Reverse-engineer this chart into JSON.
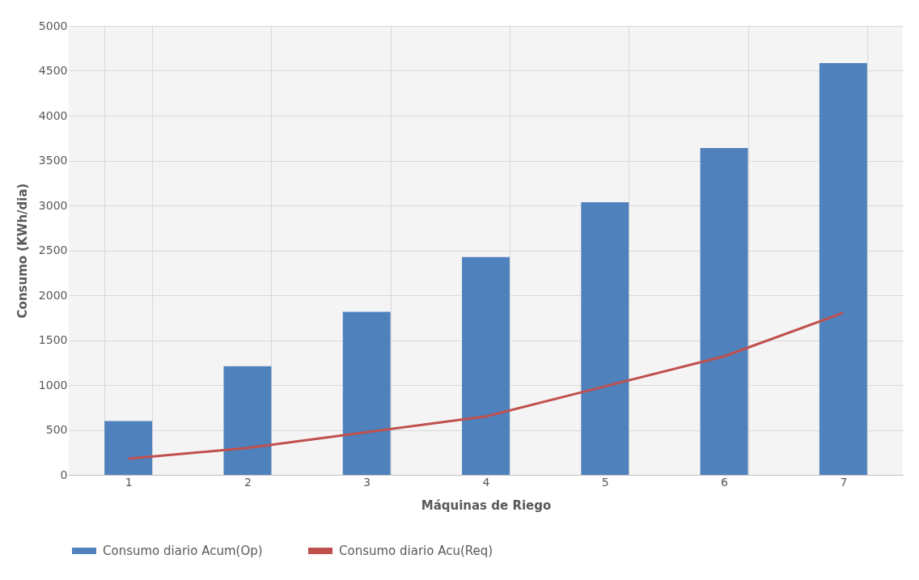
{
  "chart_data": {
    "type": "bar",
    "xlabel": "Máquinas de Riego",
    "ylabel": "Consumo (KWh/dia)",
    "categories": [
      "1",
      "2",
      "3",
      "4",
      "5",
      "6",
      "7"
    ],
    "series": [
      {
        "name": "Consumo diario Acum(Op)",
        "color": "#4f81bd",
        "values": [
          600,
          1210,
          1815,
          2425,
          3035,
          3640,
          4585
        ]
      },
      {
        "name": "Consumo diario Acu(Req)",
        "type": "line",
        "color": "#c0504d",
        "values": [
          180,
          300,
          475,
          650,
          985,
          1320,
          1805
        ]
      }
    ],
    "ylim": [
      0,
      5000
    ],
    "yticks": [
      0,
      500,
      1000,
      1500,
      2000,
      2500,
      3000,
      3500,
      4000,
      4500,
      5000
    ],
    "grid": true,
    "legend": "bottom",
    "marker": "none",
    "line_style": "solid"
  }
}
